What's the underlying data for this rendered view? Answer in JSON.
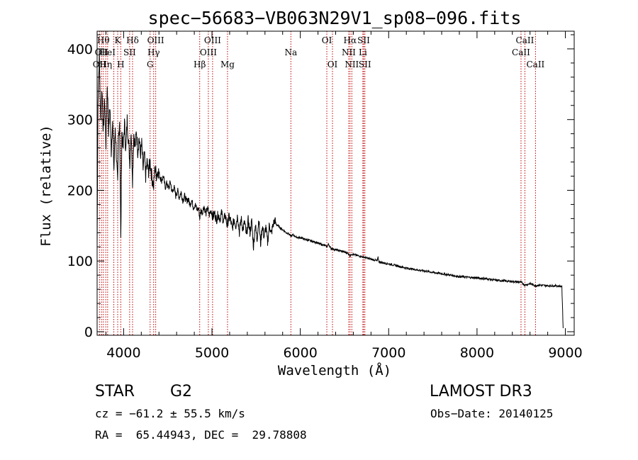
{
  "chart_data": {
    "type": "line",
    "title": "spec−56683−VB063N29V1_sp08−096.fits",
    "xlabel": "Wavelength (Å)",
    "ylabel": "Flux (relative)",
    "xlim": [
      3700,
      9100
    ],
    "ylim": [
      -5,
      425
    ],
    "x_ticks": [
      4000,
      5000,
      6000,
      7000,
      8000,
      9000
    ],
    "y_ticks": [
      0,
      100,
      200,
      300,
      400
    ],
    "series": [
      {
        "name": "spectrum",
        "points": [
          [
            3700,
            120
          ],
          [
            3710,
            330
          ],
          [
            3725,
            390
          ],
          [
            3740,
            300
          ],
          [
            3755,
            345
          ],
          [
            3770,
            280
          ],
          [
            3785,
            330
          ],
          [
            3800,
            265
          ],
          [
            3815,
            350
          ],
          [
            3830,
            285
          ],
          [
            3845,
            320
          ],
          [
            3860,
            255
          ],
          [
            3875,
            300
          ],
          [
            3890,
            230
          ],
          [
            3905,
            290
          ],
          [
            3920,
            245
          ],
          [
            3933,
            205
          ],
          [
            3940,
            270
          ],
          [
            3955,
            300
          ],
          [
            3968,
            128
          ],
          [
            3980,
            285
          ],
          [
            3995,
            260
          ],
          [
            4010,
            295
          ],
          [
            4025,
            255
          ],
          [
            4040,
            300
          ],
          [
            4055,
            270
          ],
          [
            4070,
            240
          ],
          [
            4085,
            285
          ],
          [
            4101,
            215
          ],
          [
            4115,
            280
          ],
          [
            4130,
            260
          ],
          [
            4145,
            285
          ],
          [
            4160,
            255
          ],
          [
            4175,
            275
          ],
          [
            4190,
            250
          ],
          [
            4205,
            265
          ],
          [
            4220,
            230
          ],
          [
            4235,
            250
          ],
          [
            4250,
            220
          ],
          [
            4265,
            240
          ],
          [
            4280,
            225
          ],
          [
            4300,
            240
          ],
          [
            4320,
            218
          ],
          [
            4340,
            205
          ],
          [
            4355,
            232
          ],
          [
            4370,
            222
          ],
          [
            4390,
            228
          ],
          [
            4410,
            220
          ],
          [
            4430,
            214
          ],
          [
            4450,
            220
          ],
          [
            4470,
            204
          ],
          [
            4490,
            210
          ],
          [
            4510,
            202
          ],
          [
            4530,
            212
          ],
          [
            4550,
            196
          ],
          [
            4570,
            205
          ],
          [
            4590,
            192
          ],
          [
            4610,
            200
          ],
          [
            4630,
            190
          ],
          [
            4650,
            197
          ],
          [
            4670,
            186
          ],
          [
            4690,
            192
          ],
          [
            4710,
            184
          ],
          [
            4730,
            188
          ],
          [
            4750,
            180
          ],
          [
            4770,
            186
          ],
          [
            4790,
            176
          ],
          [
            4810,
            180
          ],
          [
            4830,
            172
          ],
          [
            4850,
            175
          ],
          [
            4861,
            160
          ],
          [
            4875,
            172
          ],
          [
            4890,
            168
          ],
          [
            4910,
            178
          ],
          [
            4930,
            166
          ],
          [
            4950,
            175
          ],
          [
            4970,
            165
          ],
          [
            4990,
            172
          ],
          [
            5010,
            162
          ],
          [
            5030,
            168
          ],
          [
            5050,
            158
          ],
          [
            5070,
            166
          ],
          [
            5090,
            160
          ],
          [
            5110,
            168
          ],
          [
            5130,
            155
          ],
          [
            5150,
            165
          ],
          [
            5172,
            150
          ],
          [
            5190,
            162
          ],
          [
            5210,
            158
          ],
          [
            5230,
            145
          ],
          [
            5250,
            160
          ],
          [
            5270,
            150
          ],
          [
            5290,
            165
          ],
          [
            5310,
            140
          ],
          [
            5330,
            160
          ],
          [
            5350,
            145
          ],
          [
            5370,
            155
          ],
          [
            5390,
            135
          ],
          [
            5410,
            158
          ],
          [
            5430,
            140
          ],
          [
            5450,
            156
          ],
          [
            5470,
            120
          ],
          [
            5490,
            152
          ],
          [
            5510,
            130
          ],
          [
            5530,
            160
          ],
          [
            5550,
            124
          ],
          [
            5570,
            150
          ],
          [
            5590,
            134
          ],
          [
            5610,
            148
          ],
          [
            5630,
            126
          ],
          [
            5650,
            152
          ],
          [
            5670,
            138
          ],
          [
            5690,
            150
          ],
          [
            5710,
            158
          ],
          [
            5725,
            152
          ],
          [
            5745,
            150
          ],
          [
            5765,
            148
          ],
          [
            5790,
            145
          ],
          [
            5815,
            143
          ],
          [
            5840,
            140
          ],
          [
            5865,
            139
          ],
          [
            5893,
            135
          ],
          [
            5920,
            137
          ],
          [
            5950,
            134
          ],
          [
            5980,
            133
          ],
          [
            6010,
            133
          ],
          [
            6040,
            131
          ],
          [
            6070,
            130
          ],
          [
            6100,
            129
          ],
          [
            6130,
            128
          ],
          [
            6160,
            127
          ],
          [
            6190,
            126
          ],
          [
            6220,
            124
          ],
          [
            6250,
            123
          ],
          [
            6280,
            122
          ],
          [
            6300,
            120
          ],
          [
            6320,
            124
          ],
          [
            6345,
            118
          ],
          [
            6370,
            117
          ],
          [
            6400,
            116
          ],
          [
            6430,
            115
          ],
          [
            6460,
            114
          ],
          [
            6490,
            113
          ],
          [
            6520,
            112
          ],
          [
            6550,
            110
          ],
          [
            6563,
            107
          ],
          [
            6580,
            110
          ],
          [
            6610,
            109
          ],
          [
            6640,
            108
          ],
          [
            6670,
            107
          ],
          [
            6700,
            106
          ],
          [
            6730,
            105
          ],
          [
            6760,
            104
          ],
          [
            6790,
            103
          ],
          [
            6820,
            102
          ],
          [
            6850,
            101
          ],
          [
            6870,
            100
          ],
          [
            6880,
            105
          ],
          [
            6890,
            99
          ],
          [
            6920,
            98
          ],
          [
            6960,
            97
          ],
          [
            7000,
            96
          ],
          [
            7100,
            93
          ],
          [
            7200,
            90
          ],
          [
            7300,
            88
          ],
          [
            7400,
            86
          ],
          [
            7500,
            84
          ],
          [
            7600,
            82
          ],
          [
            7700,
            80
          ],
          [
            7800,
            78
          ],
          [
            7900,
            77
          ],
          [
            8000,
            76
          ],
          [
            8100,
            75
          ],
          [
            8200,
            73
          ],
          [
            8300,
            72
          ],
          [
            8400,
            71
          ],
          [
            8500,
            70
          ],
          [
            8540,
            66
          ],
          [
            8600,
            68
          ],
          [
            8662,
            65
          ],
          [
            8700,
            66
          ],
          [
            8800,
            65
          ],
          [
            8900,
            65
          ],
          [
            8960,
            64
          ],
          [
            8975,
            5
          ]
        ]
      }
    ],
    "line_markers": [
      {
        "wavelength": 3727,
        "label": "OII",
        "row": 3
      },
      {
        "wavelength": 3750,
        "label": "OII",
        "row": 2
      },
      {
        "wavelength": 3770,
        "label": "Hθ",
        "row": 1
      },
      {
        "wavelength": 3798,
        "label": "Hη",
        "row": 3
      },
      {
        "wavelength": 3819,
        "label": "HeI",
        "row": 2
      },
      {
        "wavelength": 3889,
        "label": "",
        "row": 0
      },
      {
        "wavelength": 3933,
        "label": "K",
        "row": 1
      },
      {
        "wavelength": 3968,
        "label": "H",
        "row": 3
      },
      {
        "wavelength": 4068,
        "label": "SII",
        "row": 2
      },
      {
        "wavelength": 4101,
        "label": "Hδ",
        "row": 1
      },
      {
        "wavelength": 4300,
        "label": "G",
        "row": 3
      },
      {
        "wavelength": 4340,
        "label": "Hγ",
        "row": 2
      },
      {
        "wavelength": 4363,
        "label": "OIII",
        "row": 1
      },
      {
        "wavelength": 4861,
        "label": "Hβ",
        "row": 3
      },
      {
        "wavelength": 4959,
        "label": "OIII",
        "row": 2
      },
      {
        "wavelength": 5007,
        "label": "OIII",
        "row": 1
      },
      {
        "wavelength": 5176,
        "label": "Mg",
        "row": 3
      },
      {
        "wavelength": 5893,
        "label": "Na",
        "row": 2
      },
      {
        "wavelength": 6300,
        "label": "OI",
        "row": 1
      },
      {
        "wavelength": 6364,
        "label": "OI",
        "row": 3
      },
      {
        "wavelength": 6548,
        "label": "NII",
        "row": 2
      },
      {
        "wavelength": 6563,
        "label": "Hα",
        "row": 1
      },
      {
        "wavelength": 6583,
        "label": "NII",
        "row": 3
      },
      {
        "wavelength": 6708,
        "label": "Li",
        "row": 2
      },
      {
        "wavelength": 6717,
        "label": "SII",
        "row": 1
      },
      {
        "wavelength": 6731,
        "label": "SII",
        "row": 3
      },
      {
        "wavelength": 8498,
        "label": "CaII",
        "row": 2
      },
      {
        "wavelength": 8542,
        "label": "CaII",
        "row": 1
      },
      {
        "wavelength": 8662,
        "label": "CaII",
        "row": 3
      }
    ],
    "grid": false,
    "legend": "none"
  },
  "info": {
    "class": "STAR",
    "subclass": "G2",
    "survey": "LAMOST DR3",
    "redshift": "cz = −61.2 ± 55.5 km/s",
    "obs_date": "Obs−Date: 20140125",
    "coords": "RA =  65.44943, DEC =  29.78808"
  },
  "colors": {
    "spectrum": "#000000",
    "line_marker": "#c00000",
    "axis": "#000000"
  }
}
